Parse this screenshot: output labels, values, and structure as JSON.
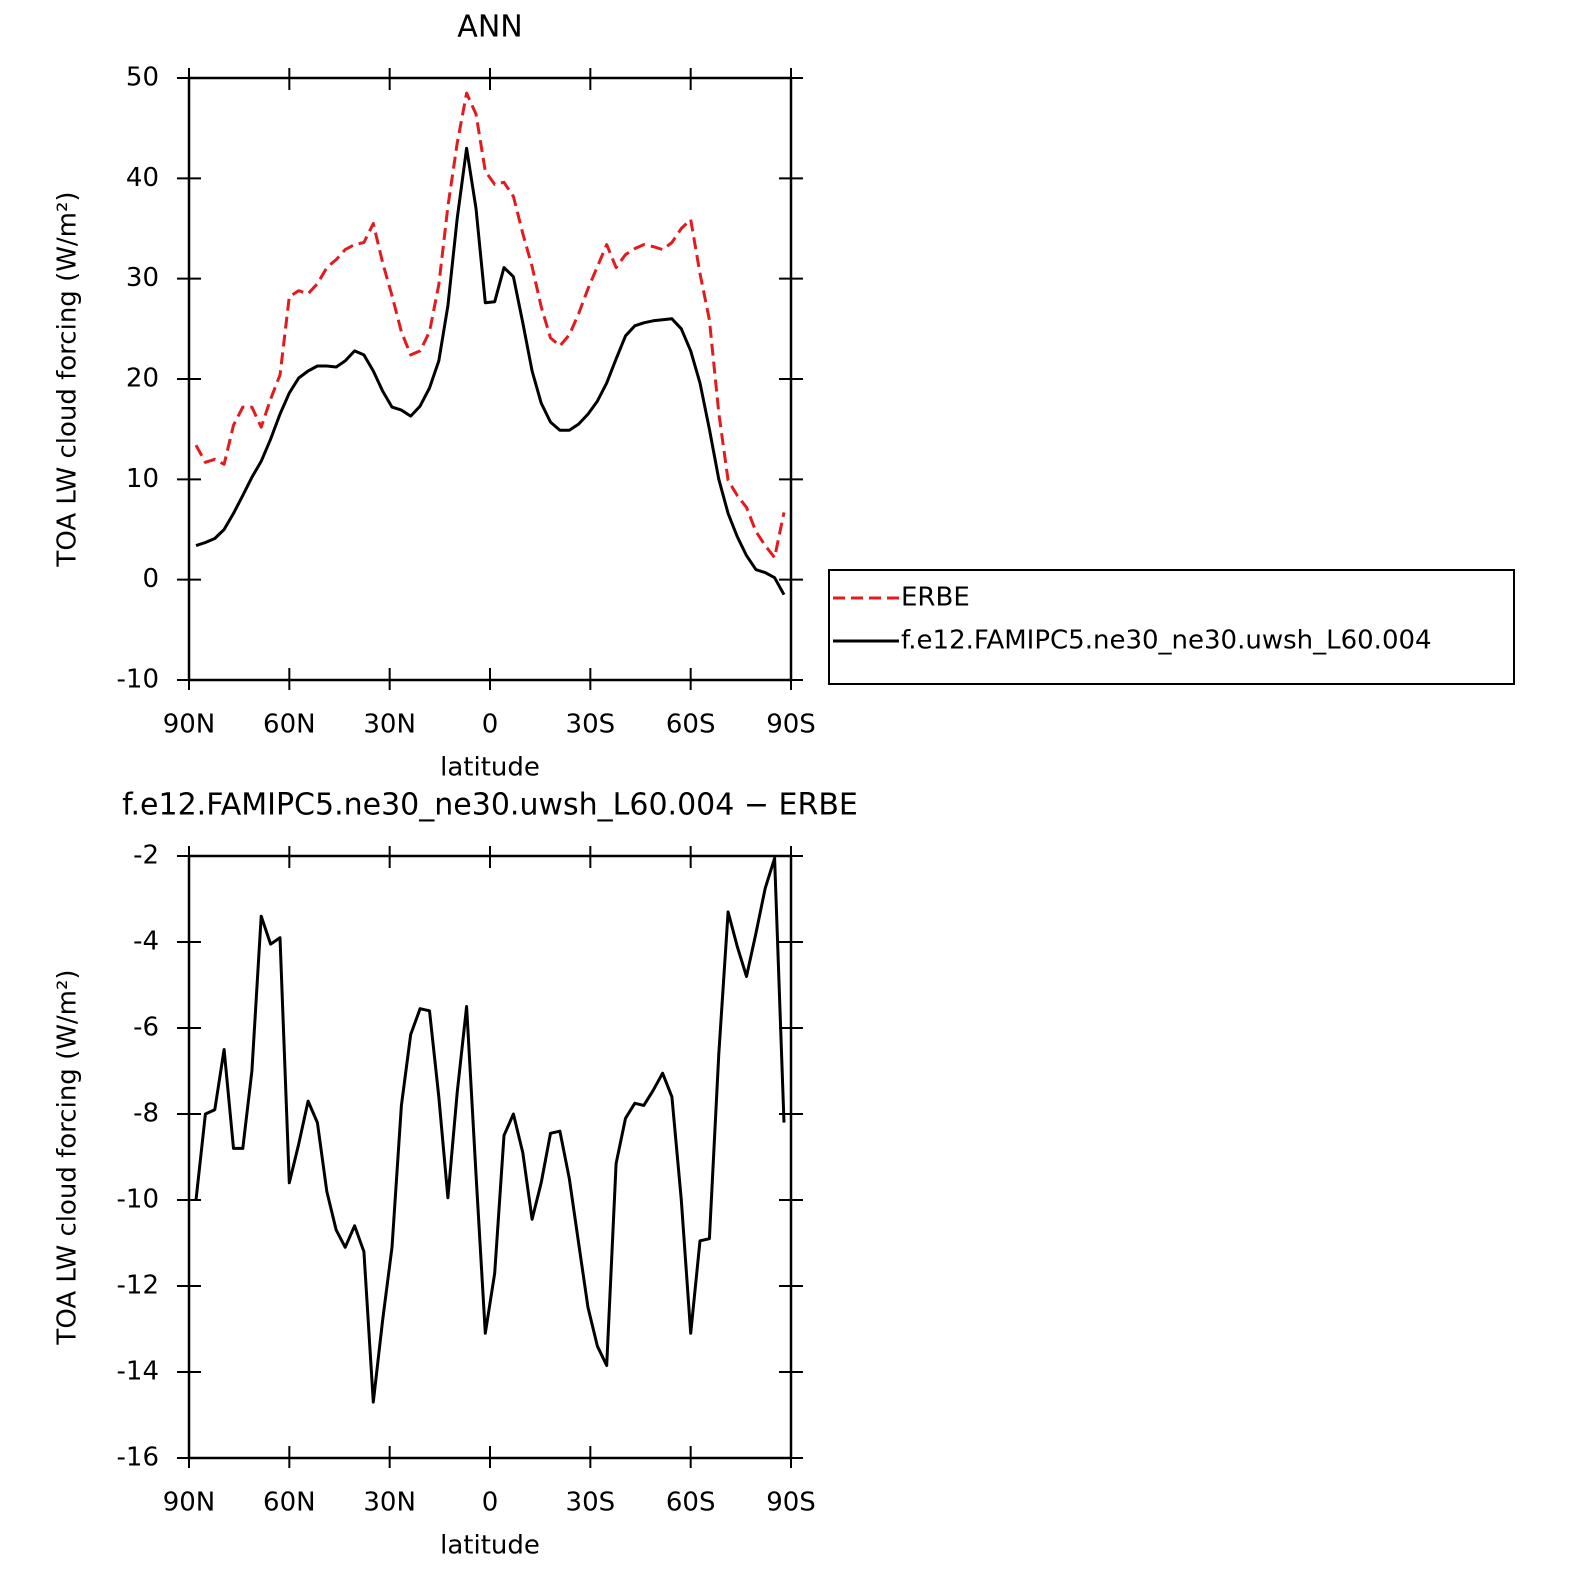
{
  "chart_data": [
    {
      "type": "line",
      "title": "ANN",
      "x_label": "latitude",
      "y_label": "TOA LW cloud forcing (W/m²)",
      "x": [
        87.9,
        85.1,
        82.3,
        79.5,
        76.7,
        73.9,
        71.2,
        68.4,
        65.6,
        62.8,
        60.0,
        57.2,
        54.4,
        51.6,
        48.8,
        46.0,
        43.3,
        40.5,
        37.7,
        34.9,
        32.1,
        29.3,
        26.5,
        23.7,
        20.9,
        18.1,
        15.3,
        12.6,
        9.8,
        7.0,
        4.2,
        1.4,
        -1.4,
        -4.2,
        -7.0,
        -9.8,
        -12.6,
        -15.3,
        -18.1,
        -20.9,
        -23.7,
        -26.5,
        -29.3,
        -32.1,
        -34.9,
        -37.7,
        -40.5,
        -43.3,
        -46.0,
        -48.8,
        -51.6,
        -54.4,
        -57.2,
        -60.0,
        -62.8,
        -65.6,
        -68.4,
        -71.2,
        -73.9,
        -76.7,
        -79.5,
        -82.3,
        -85.1,
        -87.9
      ],
      "series": [
        {
          "name": "ERBE",
          "color": "#e41a1c",
          "dashed": true,
          "values": [
            13.4,
            11.7,
            12.0,
            11.5,
            15.4,
            17.2,
            17.2,
            15.2,
            18.0,
            20.4,
            28.2,
            28.8,
            28.5,
            29.5,
            31.1,
            31.9,
            32.9,
            33.4,
            33.6,
            35.5,
            31.6,
            28.3,
            24.7,
            22.4,
            22.8,
            24.7,
            29.4,
            37.2,
            43.5,
            48.5,
            46.4,
            40.7,
            39.4,
            39.6,
            38.2,
            34.5,
            31.2,
            27.2,
            24.1,
            23.3,
            24.4,
            26.5,
            29.0,
            31.2,
            33.4,
            31.1,
            32.4,
            33.0,
            33.4,
            33.2,
            32.9,
            33.6,
            35.0,
            35.9,
            30.5,
            25.9,
            16.6,
            9.9,
            8.4,
            7.2,
            4.8,
            3.4,
            2.2,
            6.7
          ]
        },
        {
          "name": "f.e12.FAMIPC5.ne30_ne30.uwsh_L60.004",
          "color": "#000000",
          "dashed": false,
          "values": [
            3.4,
            3.7,
            4.1,
            5.0,
            6.6,
            8.4,
            10.2,
            11.8,
            14.0,
            16.5,
            18.6,
            20.1,
            20.8,
            21.3,
            21.3,
            21.2,
            21.8,
            22.8,
            22.4,
            20.8,
            18.8,
            17.2,
            16.9,
            16.3,
            17.3,
            19.1,
            21.8,
            27.3,
            36.0,
            43.0,
            37.0,
            27.6,
            27.7,
            31.1,
            30.2,
            25.6,
            20.8,
            17.6,
            15.7,
            14.9,
            14.9,
            15.5,
            16.5,
            17.8,
            19.6,
            22.0,
            24.3,
            25.3,
            25.6,
            25.8,
            25.9,
            26.0,
            25.0,
            22.8,
            19.6,
            15.0,
            10.0,
            6.6,
            4.3,
            2.4,
            1.0,
            0.7,
            0.2,
            -1.5
          ]
        }
      ],
      "xlim": [
        90,
        -90
      ],
      "xticks": [
        {
          "value": 90,
          "label": "90N"
        },
        {
          "value": 60,
          "label": "60N"
        },
        {
          "value": 30,
          "label": "30N"
        },
        0,
        {
          "value": -30,
          "label": "30S"
        },
        {
          "value": -60,
          "label": "60S"
        },
        {
          "value": -90,
          "label": "90S"
        }
      ],
      "ylim": [
        -10,
        50
      ],
      "yticks": [
        -10,
        0,
        10,
        20,
        30,
        40,
        50
      ],
      "legend": "right"
    },
    {
      "type": "line",
      "title": "f.e12.FAMIPC5.ne30_ne30.uwsh_L60.004 − ERBE",
      "x_label": "latitude",
      "y_label": "TOA LW cloud forcing (W/m²)",
      "x": [
        87.9,
        85.1,
        82.3,
        79.5,
        76.7,
        73.9,
        71.2,
        68.4,
        65.6,
        62.8,
        60.0,
        57.2,
        54.4,
        51.6,
        48.8,
        46.0,
        43.3,
        40.5,
        37.7,
        34.9,
        32.1,
        29.3,
        26.5,
        23.7,
        20.9,
        18.1,
        15.3,
        12.6,
        9.8,
        7.0,
        4.2,
        1.4,
        -1.4,
        -4.2,
        -7.0,
        -9.8,
        -12.6,
        -15.3,
        -18.1,
        -20.9,
        -23.7,
        -26.5,
        -29.3,
        -32.1,
        -34.9,
        -37.7,
        -40.5,
        -43.3,
        -46.0,
        -48.8,
        -51.6,
        -54.4,
        -57.2,
        -60.0,
        -62.8,
        -65.6,
        -68.4,
        -71.2,
        -73.9,
        -76.7,
        -79.5,
        -82.3,
        -85.1,
        -87.9
      ],
      "color": "#000000",
      "values": [
        -10.0,
        -8.0,
        -7.9,
        -6.5,
        -8.8,
        -8.8,
        -7.0,
        -3.4,
        -4.05,
        -3.9,
        -9.6,
        -8.7,
        -7.7,
        -8.2,
        -9.8,
        -10.7,
        -11.1,
        -10.6,
        -11.2,
        -14.7,
        -12.8,
        -11.1,
        -7.8,
        -6.15,
        -5.55,
        -5.6,
        -7.6,
        -9.95,
        -7.5,
        -5.5,
        -9.4,
        -13.1,
        -11.7,
        -8.5,
        -8.0,
        -8.9,
        -10.45,
        -9.6,
        -8.45,
        -8.4,
        -9.5,
        -11.0,
        -12.5,
        -13.4,
        -13.85,
        -9.15,
        -8.1,
        -7.75,
        -7.8,
        -7.45,
        -7.05,
        -7.6,
        -10.0,
        -13.1,
        -10.95,
        -10.9,
        -6.6,
        -3.3,
        -4.1,
        -4.8,
        -3.8,
        -2.75,
        -2.05,
        -8.2
      ],
      "xlim": [
        90,
        -90
      ],
      "xticks": [
        {
          "value": 90,
          "label": "90N"
        },
        {
          "value": 60,
          "label": "60N"
        },
        {
          "value": 30,
          "label": "30N"
        },
        0,
        {
          "value": -30,
          "label": "30S"
        },
        {
          "value": -60,
          "label": "60S"
        },
        {
          "value": -90,
          "label": "90S"
        }
      ],
      "ylim": [
        -16,
        -2
      ],
      "yticks": [
        -16,
        -14,
        -12,
        -10,
        -8,
        -6,
        -4,
        -2
      ]
    }
  ]
}
